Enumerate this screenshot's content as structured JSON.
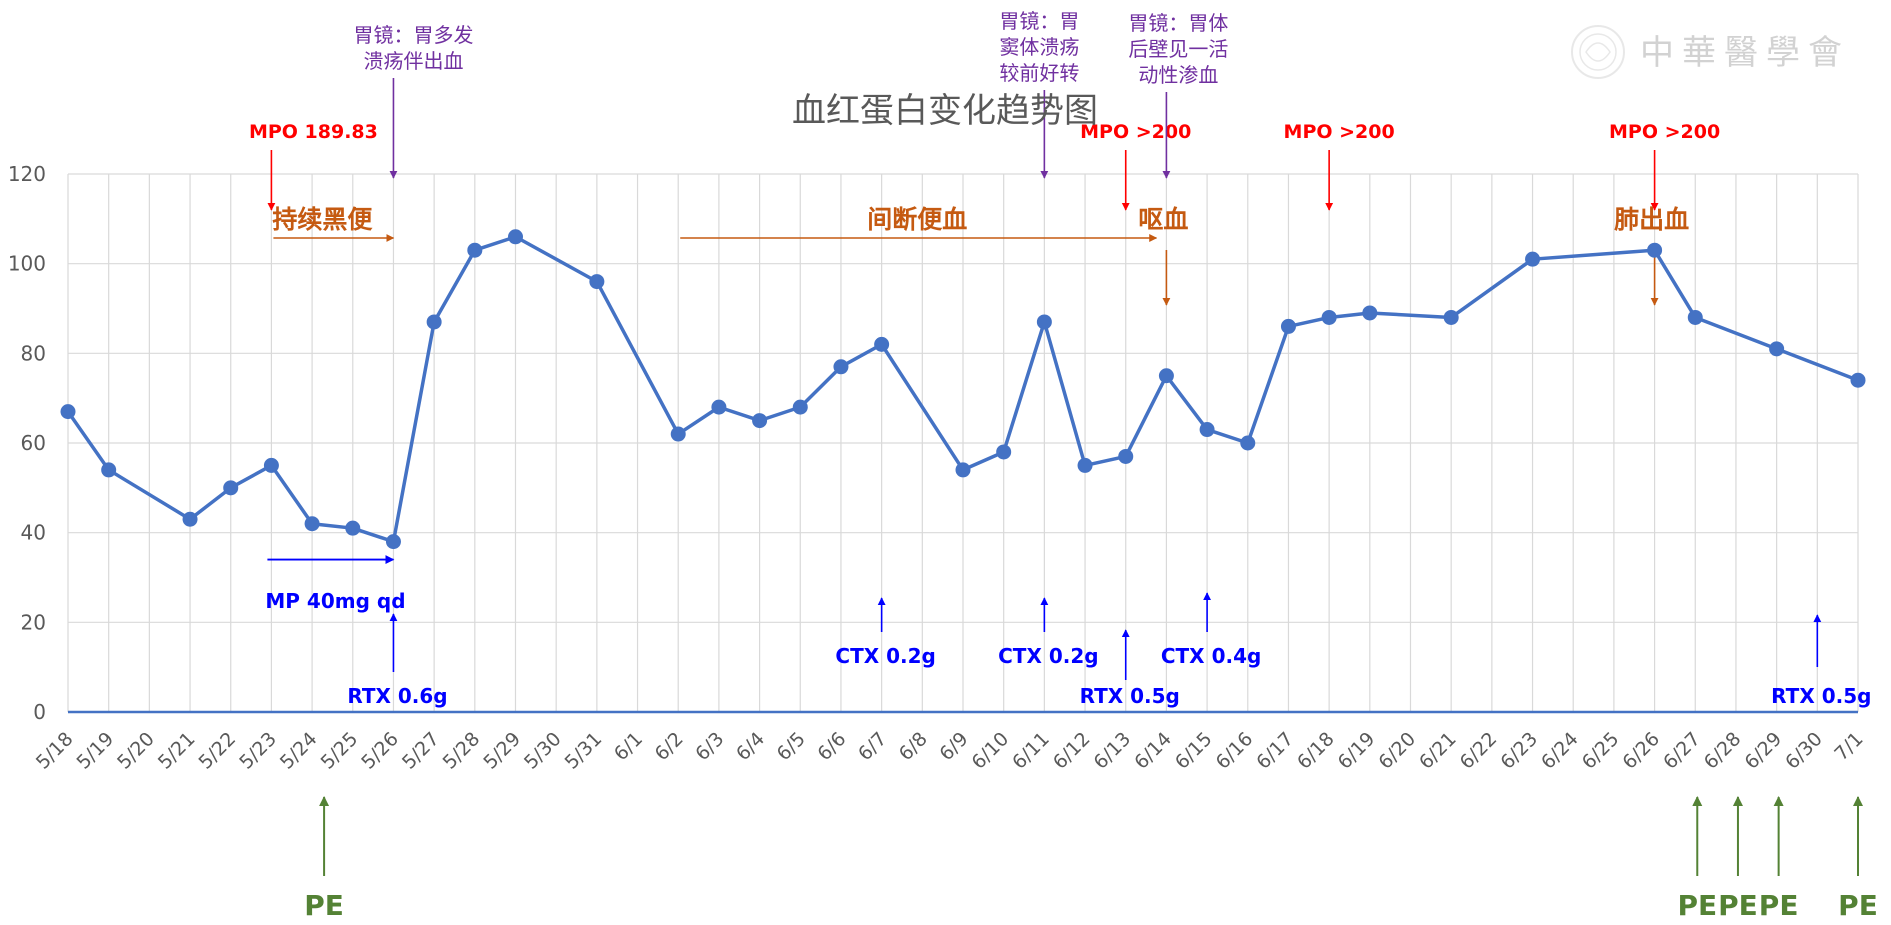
{
  "chart_data": {
    "type": "line",
    "title": "血红蛋白变化趋势图",
    "ylim": [
      0,
      120
    ],
    "yticks": [
      0,
      20,
      40,
      60,
      80,
      100,
      120
    ],
    "categories": [
      "5/18",
      "5/19",
      "5/20",
      "5/21",
      "5/22",
      "5/23",
      "5/24",
      "5/25",
      "5/26",
      "5/27",
      "5/28",
      "5/29",
      "5/30",
      "5/31",
      "6/1",
      "6/2",
      "6/3",
      "6/4",
      "6/5",
      "6/6",
      "6/7",
      "6/8",
      "6/9",
      "6/10",
      "6/11",
      "6/12",
      "6/13",
      "6/14",
      "6/15",
      "6/16",
      "6/17",
      "6/18",
      "6/19",
      "6/20",
      "6/21",
      "6/22",
      "6/23",
      "6/24",
      "6/25",
      "6/26",
      "6/27",
      "6/28",
      "6/29",
      "6/30",
      "7/1"
    ],
    "points": [
      {
        "x": "5/18",
        "y": 67
      },
      {
        "x": "5/19",
        "y": 54
      },
      {
        "x": "5/21",
        "y": 43
      },
      {
        "x": "5/22",
        "y": 50
      },
      {
        "x": "5/23",
        "y": 55
      },
      {
        "x": "5/24",
        "y": 42
      },
      {
        "x": "5/25",
        "y": 41
      },
      {
        "x": "5/26",
        "y": 38
      },
      {
        "x": "5/27",
        "y": 87
      },
      {
        "x": "5/28",
        "y": 103
      },
      {
        "x": "5/29",
        "y": 106
      },
      {
        "x": "5/31",
        "y": 96
      },
      {
        "x": "6/2",
        "y": 62
      },
      {
        "x": "6/3",
        "y": 68
      },
      {
        "x": "6/4",
        "y": 65
      },
      {
        "x": "6/5",
        "y": 68
      },
      {
        "x": "6/6",
        "y": 77
      },
      {
        "x": "6/7",
        "y": 82
      },
      {
        "x": "6/9",
        "y": 54
      },
      {
        "x": "6/10",
        "y": 58
      },
      {
        "x": "6/11",
        "y": 87
      },
      {
        "x": "6/12",
        "y": 55
      },
      {
        "x": "6/13",
        "y": 57
      },
      {
        "x": "6/14",
        "y": 75
      },
      {
        "x": "6/15",
        "y": 63
      },
      {
        "x": "6/16",
        "y": 60
      },
      {
        "x": "6/17",
        "y": 86
      },
      {
        "x": "6/18",
        "y": 88
      },
      {
        "x": "6/19",
        "y": 89
      },
      {
        "x": "6/21",
        "y": 88
      },
      {
        "x": "6/23",
        "y": 101
      },
      {
        "x": "6/26",
        "y": 103
      },
      {
        "x": "6/27",
        "y": 88
      },
      {
        "x": "6/29",
        "y": 81
      },
      {
        "x": "7/1",
        "y": 74
      }
    ],
    "colors": {
      "line": "#4472c4",
      "grid": "#d9d9d9",
      "mpo": "#ff0000",
      "endoscopy": "#7030a0",
      "bleeding": "#c55a11",
      "treatment": "#0000ff",
      "pe": "#548235"
    },
    "annotations": {
      "mpo": [
        {
          "text": "MPO 189.83",
          "at": "5/23"
        },
        {
          "text": "MPO >200",
          "at": "6/13"
        },
        {
          "text": "MPO >200",
          "at": "6/18"
        },
        {
          "text": "MPO >200",
          "at": "6/26"
        }
      ],
      "endoscopy": [
        {
          "lines": [
            "胃镜：胃多发",
            "溃疡伴出血"
          ],
          "at": "5/26"
        },
        {
          "lines": [
            "胃镜：胃",
            "窦体溃疡",
            "较前好转"
          ],
          "at": "6/11"
        },
        {
          "lines": [
            "胃镜：胃体",
            "后壁见一活",
            "动性渗血"
          ],
          "at": "6/14"
        }
      ],
      "bleeding": [
        {
          "text": "持续黑便",
          "from": "5/23",
          "to": "5/26"
        },
        {
          "text": "间断便血",
          "from": "6/2",
          "to": "6/14"
        },
        {
          "text": "呕血",
          "at": "6/14"
        },
        {
          "text": "肺出血",
          "at": "6/26"
        }
      ],
      "steroid": {
        "text": "MP 40mg qd",
        "from": "5/23",
        "to": "5/26"
      },
      "treatments": [
        {
          "text": "RTX  0.6g",
          "at": "5/26"
        },
        {
          "text": "CTX  0.2g",
          "at": "6/7"
        },
        {
          "text": "CTX  0.2g",
          "at": "6/11"
        },
        {
          "text": "RTX  0.5g",
          "at": "6/13"
        },
        {
          "text": "CTX  0.4g",
          "at": "6/15"
        },
        {
          "text": "RTX  0.5g",
          "at": "6/30"
        }
      ],
      "pe": [
        {
          "text": "PE",
          "at": "5/24"
        },
        {
          "text": "PE",
          "at": "6/27"
        },
        {
          "text": "PE",
          "at": "6/28"
        },
        {
          "text": "PE",
          "at": "6/29"
        },
        {
          "text": "PE",
          "at": "7/1"
        }
      ]
    }
  },
  "watermark": {
    "text": "中華醫學會"
  }
}
